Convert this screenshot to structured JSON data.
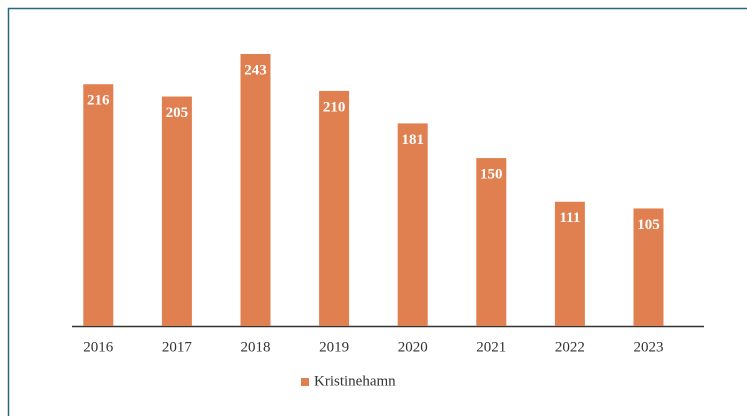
{
  "chart_data": {
    "type": "bar",
    "categories": [
      "2016",
      "2017",
      "2018",
      "2019",
      "2020",
      "2021",
      "2022",
      "2023"
    ],
    "series": [
      {
        "name": "Kristinehamn",
        "color": "#e07f4f",
        "values": [
          216,
          205,
          243,
          210,
          181,
          150,
          111,
          105
        ]
      }
    ]
  }
}
